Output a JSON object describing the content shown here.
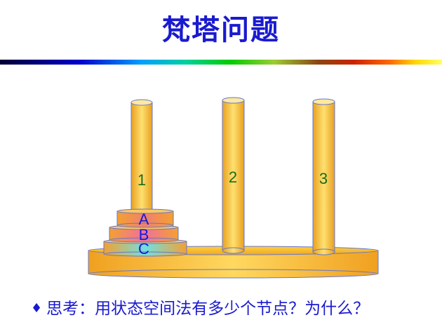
{
  "title": "梵塔问题",
  "pegs": [
    {
      "label": "1"
    },
    {
      "label": "2"
    },
    {
      "label": "3"
    }
  ],
  "disks": [
    {
      "label": "A"
    },
    {
      "label": "B"
    },
    {
      "label": "C"
    }
  ],
  "question": {
    "bullet": "♦",
    "text": "思考：用状态空间法有多少个节点？为什么？"
  },
  "colors": {
    "title": "#1a1ad0",
    "peg": "#f5b830",
    "peg_label": "#1a6b1a",
    "disk_label": "#1a1ad0",
    "disk_a": "#f08060",
    "disk_b": "#f07090",
    "disk_c": "#70d8d8"
  }
}
